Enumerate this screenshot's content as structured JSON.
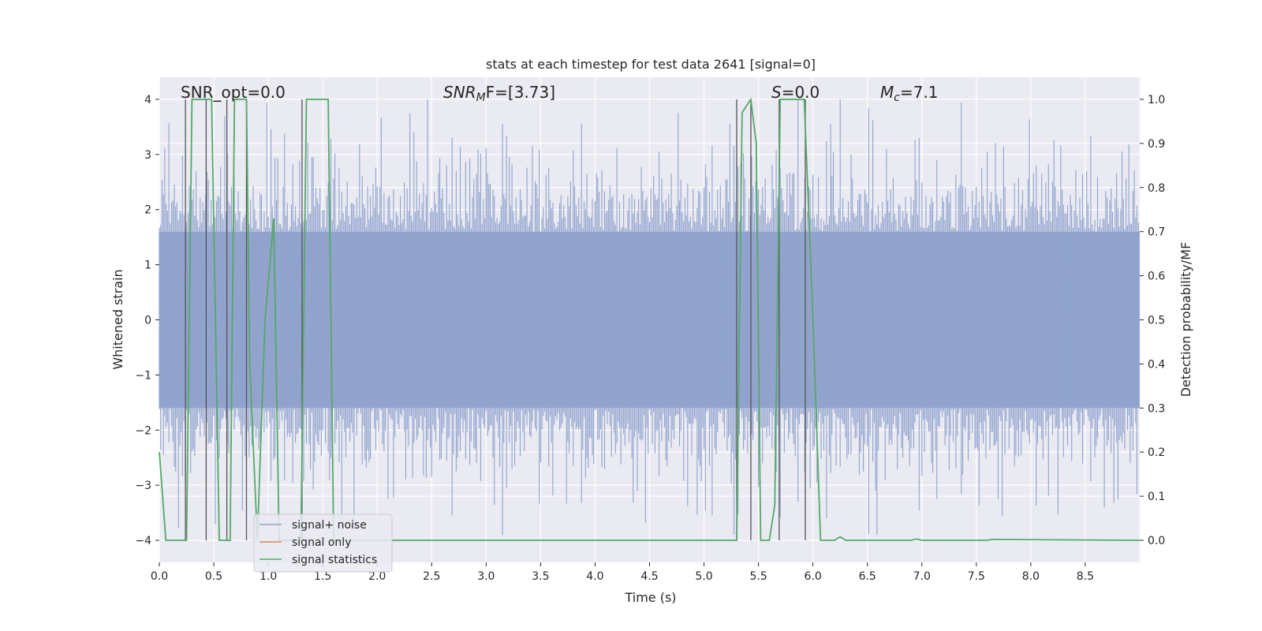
{
  "chart_data": {
    "type": "line",
    "title": "stats at each timestep for test data 2641 [signal=0]",
    "xlabel": "Time (s)",
    "ylabel": "Whitened strain",
    "y2label": "Detection probability/MF",
    "xlim": [
      0.0,
      9.0
    ],
    "ylim": [
      -4.4,
      4.4
    ],
    "y2lim": [
      -0.05,
      1.05
    ],
    "xticks": [
      0.0,
      0.5,
      1.0,
      1.5,
      2.0,
      2.5,
      3.0,
      3.5,
      4.0,
      4.5,
      5.0,
      5.5,
      6.0,
      6.5,
      7.0,
      7.5,
      8.0,
      8.5
    ],
    "xtick_labels": [
      "0.0",
      "0.5",
      "1.0",
      "1.5",
      "2.0",
      "2.5",
      "3.0",
      "3.5",
      "4.0",
      "4.5",
      "5.0",
      "5.5",
      "6.0",
      "6.5",
      "7.0",
      "7.5",
      "8.0",
      "8.5"
    ],
    "yticks": [
      4,
      3,
      2,
      1,
      0,
      -1,
      -2,
      -3,
      -4
    ],
    "ytick_labels": [
      "4",
      "3",
      "2",
      "1",
      "0",
      "−1",
      "−2",
      "−3",
      "−4"
    ],
    "y2ticks": [
      1.0,
      0.9,
      0.8,
      0.7,
      0.6,
      0.5,
      0.4,
      0.3,
      0.2,
      0.1,
      0.0
    ],
    "y2tick_labels": [
      "1.0",
      "0.9",
      "0.8",
      "0.7",
      "0.6",
      "0.5",
      "0.4",
      "0.3",
      "0.2",
      "0.1",
      "0.0"
    ],
    "grid": true,
    "legend_position": "lower-left",
    "annotations": {
      "snr_opt": "SNR_opt=0.0",
      "snr_mf_sym": "SNR",
      "snr_mf_sub": "M",
      "snr_mf_rest": "F=[3.73]",
      "s_sym": "S",
      "s_rest": "=0.0",
      "mc_sym": "M",
      "mc_sub": "c",
      "mc_rest": "=7.1"
    },
    "series": [
      {
        "name": "signal+ noise",
        "color": "#8fa2cc",
        "envelope_abs": 1.6,
        "spike_amplitudes": [
          2.3,
          2.7,
          3.0,
          2.4,
          3.3,
          2.5,
          2.2,
          3.4,
          2.9,
          2.5,
          2.6,
          3.7,
          2.8,
          2.4,
          3.9,
          2.6,
          3.0,
          3.8,
          2.4,
          2.9,
          2.2,
          3.1,
          2.5,
          2.8,
          3.5,
          2.3,
          2.6,
          3.7,
          2.4,
          2.7,
          3.1,
          2.2,
          3.6,
          2.5
        ]
      },
      {
        "name": "signal only",
        "color": "#dd8452",
        "values": []
      },
      {
        "name": "signal statistics",
        "color": "#55a868",
        "x": [
          0.0,
          0.06,
          0.2,
          0.25,
          0.3,
          0.42,
          0.48,
          0.55,
          0.6,
          0.65,
          0.69,
          0.72,
          0.8,
          0.83,
          0.9,
          0.97,
          1.05,
          1.1,
          1.15,
          1.25,
          1.3,
          1.35,
          1.4,
          1.55,
          1.6,
          1.65,
          5.25,
          5.3,
          5.35,
          5.43,
          5.48,
          5.52,
          5.6,
          5.65,
          5.7,
          5.78,
          5.92,
          6.0,
          6.07,
          6.1,
          6.2,
          6.25,
          6.3,
          6.9,
          6.95,
          7.0,
          7.6,
          7.65,
          9.0
        ],
        "y": [
          0.2,
          0.0,
          0.0,
          0.0,
          1.0,
          1.0,
          1.0,
          0.0,
          0.0,
          0.0,
          1.0,
          1.0,
          1.0,
          0.4,
          0.0,
          0.5,
          0.73,
          0.0,
          0.0,
          0.0,
          0.0,
          1.0,
          1.0,
          1.0,
          0.0,
          0.0,
          0.0,
          0.0,
          0.97,
          1.0,
          0.9,
          0.0,
          0.0,
          0.08,
          1.0,
          1.0,
          1.0,
          0.5,
          0.0,
          0.0,
          0.0,
          0.008,
          0.0,
          0.0,
          0.003,
          0.0,
          0.0,
          0.002,
          0.0
        ]
      }
    ],
    "vertical_markers_x": [
      0.24,
      0.43,
      0.62,
      0.8,
      1.31,
      5.3,
      5.43,
      5.69,
      5.93
    ]
  }
}
